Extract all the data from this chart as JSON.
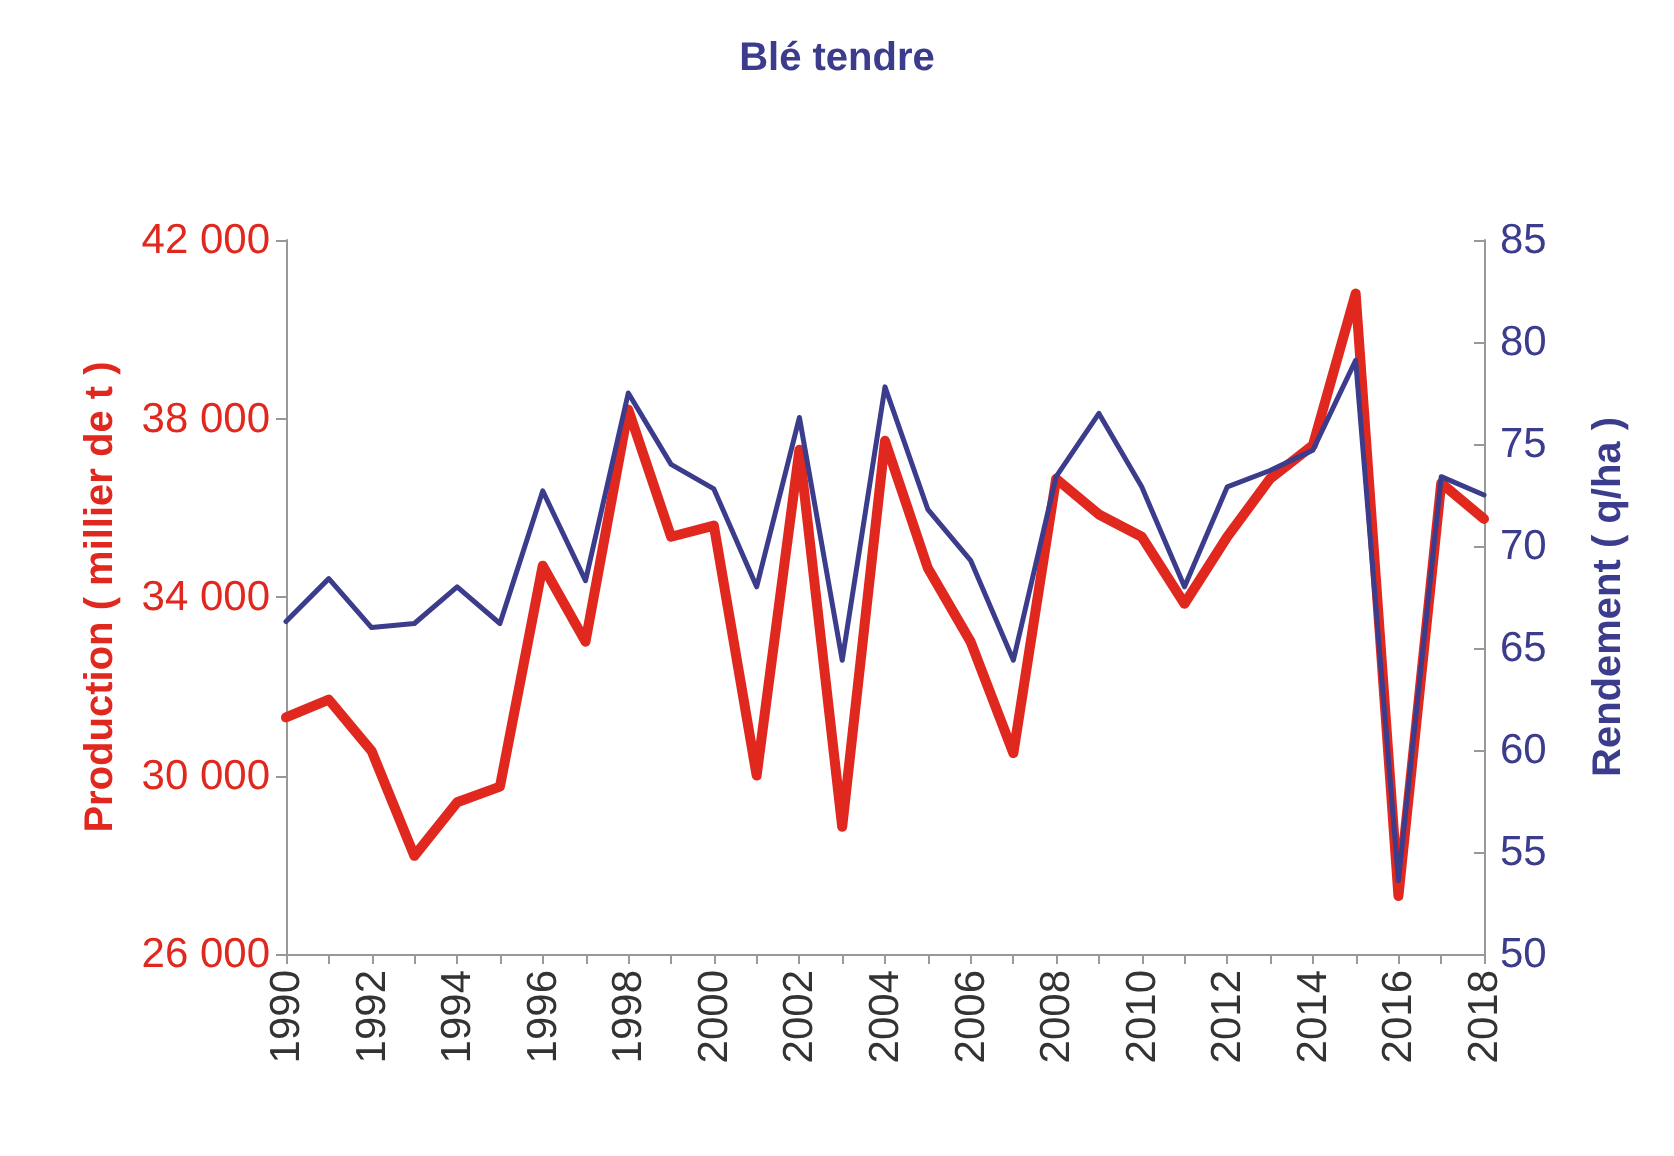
{
  "chart_data": {
    "type": "line",
    "title": "Blé tendre",
    "ylabel": "Production ( millier de t )",
    "y2label": "Rendement ( q/ha )",
    "categories": [
      "1990",
      null,
      "1992",
      null,
      "1994",
      null,
      "1996",
      null,
      "1998",
      null,
      "2000",
      null,
      "2002",
      null,
      "2004",
      null,
      "2006",
      null,
      "2008",
      null,
      "2010",
      null,
      "2012",
      null,
      "2014",
      null,
      "2016",
      null,
      "2018"
    ],
    "series": [
      {
        "name": null,
        "color": "#e0281e",
        "values": [
          31300,
          31700,
          30550,
          28200,
          29400,
          29750,
          34700,
          33000,
          38200,
          35350,
          35600,
          30000,
          37300,
          28850,
          37500,
          34650,
          33000,
          30500,
          36650,
          35850,
          35350,
          33850,
          35350,
          36650,
          37400,
          40800,
          27300,
          36550,
          35750
        ]
      },
      {
        "name": null,
        "color": "#3c3c8c",
        "axis": "y2",
        "values": [
          66.3,
          68.4,
          66.0,
          66.2,
          68.0,
          66.2,
          72.7,
          68.3,
          77.5,
          74.0,
          72.8,
          68.0,
          76.3,
          64.4,
          77.8,
          71.8,
          69.3,
          64.4,
          73.4,
          76.5,
          72.9,
          68.0,
          72.9,
          73.7,
          74.7,
          79.1,
          53.6,
          73.4,
          72.5
        ]
      }
    ],
    "ylim": [
      26000,
      42000
    ],
    "yticks": [
      {
        "value": 26000,
        "label": "26 000"
      },
      {
        "value": 30000,
        "label": "30 000"
      },
      {
        "value": 34000,
        "label": "34 000"
      },
      {
        "value": 38000,
        "label": "38 000"
      },
      {
        "value": 42000,
        "label": "42 000"
      }
    ],
    "y2lim": [
      50,
      85
    ],
    "y2ticks": [
      50,
      55,
      60,
      65,
      70,
      75,
      80,
      85
    ],
    "marker": "none",
    "line_style": "solid",
    "grid": false
  }
}
